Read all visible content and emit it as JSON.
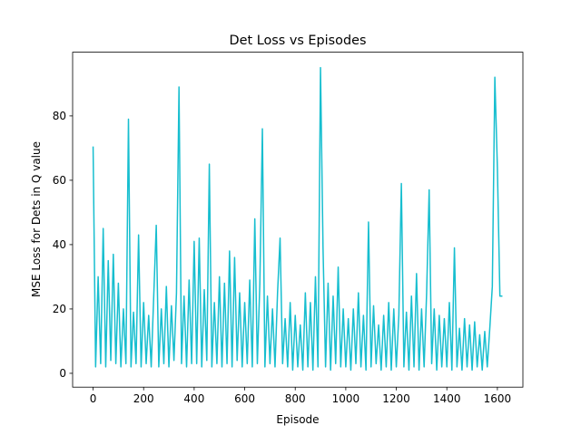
{
  "chart_data": {
    "type": "line",
    "title": "Det Loss vs Episodes",
    "x_label": "Episode",
    "y_label": "MSE Loss for Dets in Q value",
    "x": [
      0,
      10,
      20,
      30,
      40,
      50,
      60,
      70,
      80,
      90,
      100,
      110,
      120,
      130,
      140,
      150,
      160,
      170,
      180,
      190,
      200,
      210,
      220,
      230,
      240,
      250,
      260,
      270,
      280,
      290,
      300,
      310,
      320,
      330,
      340,
      350,
      360,
      370,
      380,
      390,
      400,
      410,
      420,
      430,
      440,
      450,
      460,
      470,
      480,
      490,
      500,
      510,
      520,
      530,
      540,
      550,
      560,
      570,
      580,
      590,
      600,
      610,
      620,
      630,
      640,
      650,
      660,
      670,
      680,
      690,
      700,
      710,
      720,
      730,
      740,
      750,
      760,
      770,
      780,
      790,
      800,
      810,
      820,
      830,
      840,
      850,
      860,
      870,
      880,
      890,
      900,
      910,
      920,
      930,
      940,
      950,
      960,
      970,
      980,
      990,
      1000,
      1010,
      1020,
      1030,
      1040,
      1050,
      1060,
      1070,
      1080,
      1090,
      1100,
      1110,
      1120,
      1130,
      1140,
      1150,
      1160,
      1170,
      1180,
      1190,
      1200,
      1210,
      1220,
      1230,
      1240,
      1250,
      1260,
      1270,
      1280,
      1290,
      1300,
      1310,
      1320,
      1330,
      1340,
      1350,
      1360,
      1370,
      1380,
      1390,
      1400,
      1410,
      1420,
      1430,
      1440,
      1450,
      1460,
      1470,
      1480,
      1490,
      1500,
      1510,
      1520,
      1530,
      1540,
      1550,
      1560,
      1570,
      1580,
      1590,
      1600,
      1610,
      1620
    ],
    "series": [
      {
        "name": "loss",
        "color": "#17becf",
        "values": [
          70.5,
          2,
          30,
          3,
          45,
          2,
          35,
          4,
          37,
          3,
          28,
          2,
          20,
          3,
          79,
          2,
          19,
          3,
          43,
          2,
          22,
          3,
          18,
          2,
          24,
          46,
          2,
          20,
          3,
          27,
          2,
          21,
          4,
          25,
          89,
          3,
          24,
          2,
          29,
          3,
          41,
          3,
          42,
          2,
          26,
          4,
          65,
          2,
          22,
          3,
          30,
          2,
          28,
          3,
          38,
          2,
          36,
          4,
          25,
          2,
          22,
          3,
          29,
          2,
          48,
          3,
          28,
          76,
          2,
          24,
          3,
          20,
          2,
          25,
          42,
          3,
          17,
          2,
          22,
          1,
          18,
          2,
          15,
          1,
          25,
          2,
          22,
          1,
          30,
          2,
          95,
          39,
          2,
          28,
          1,
          24,
          3,
          33,
          2,
          20,
          2,
          17,
          1,
          20,
          3,
          25,
          2,
          18,
          1,
          47,
          2,
          21,
          3,
          15,
          1,
          18,
          2,
          22,
          1,
          20,
          2,
          18,
          59,
          2,
          19,
          1,
          24,
          2,
          31,
          1,
          20,
          2,
          25,
          57,
          3,
          20,
          1,
          18,
          2,
          17,
          2,
          22,
          1,
          39,
          2,
          14,
          1,
          17,
          2,
          15,
          1,
          16,
          2,
          12,
          1,
          13,
          2,
          14,
          27,
          92,
          64,
          24,
          24
        ]
      }
    ],
    "xlim": [
      -81,
      1701
    ],
    "ylim": [
      -4.3,
      99.8
    ],
    "xticks": [
      0,
      200,
      400,
      600,
      800,
      1000,
      1200,
      1400,
      1600
    ],
    "yticks": [
      0,
      20,
      40,
      60,
      80
    ],
    "grid": false
  }
}
